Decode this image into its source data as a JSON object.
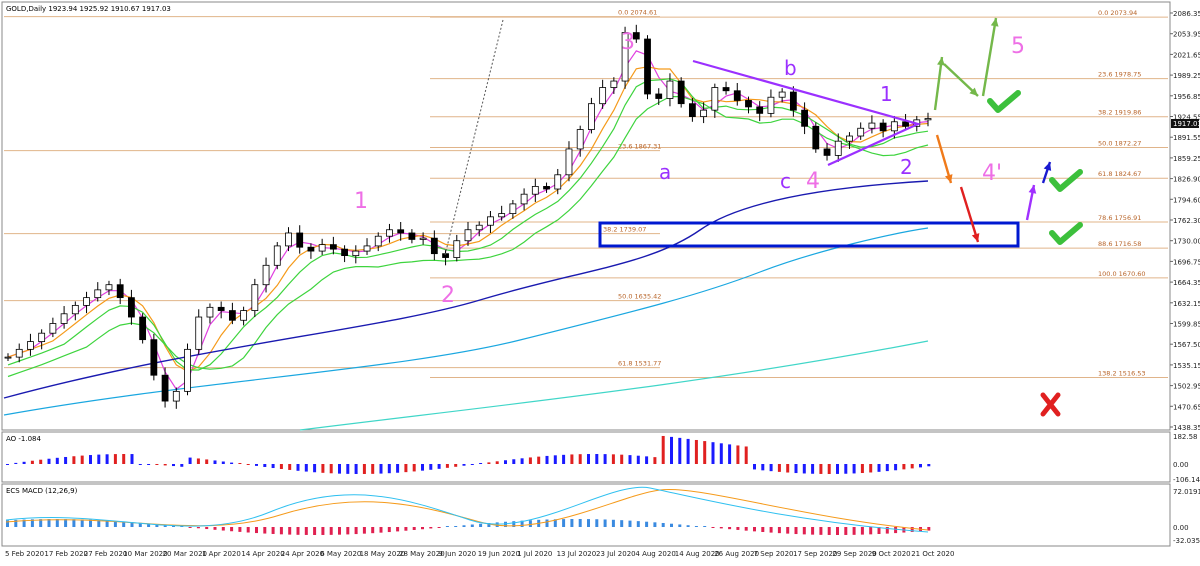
{
  "header": {
    "main_title": "GOLD,Daily 1923.94 1925.92 1910.67 1917.03",
    "ao_title": "AO -1.084",
    "macd_title": "ECS MACD (12,26,9)"
  },
  "current_price": "1917.03",
  "colors": {
    "up": "#1a1aff",
    "down": "#e02020",
    "fib": "#e0b48a",
    "trend_purple": "#9b30ff",
    "box_blue": "#0018d0",
    "ma_navy": "#1a1ab0",
    "ma_sky": "#1aa7e0",
    "ma_aqua": "#40d6c8",
    "ma_green": "#3ed43e",
    "ma_orange": "#f59a1a",
    "ma_magenta": "#e040e0",
    "check_green": "#3cc03c",
    "cross_red": "#e02020"
  },
  "price_axis": {
    "ylim": [
      1438.35,
      2088.0
    ],
    "labels": [
      "2086.35",
      "2053.95",
      "2021.65",
      "1989.25",
      "1956.85",
      "1924.55",
      "1891.55",
      "1859.25",
      "1826.90",
      "1794.60",
      "1762.30",
      "1730.00",
      "1696.75",
      "1664.35",
      "1632.15",
      "1599.85",
      "1567.50",
      "1535.15",
      "1502.95",
      "1470.65",
      "1438.35"
    ]
  },
  "fib_levels": [
    {
      "label": "0.0 2073.94",
      "price": 2073.94
    },
    {
      "label": "23.6 1978.75",
      "price": 1978.75
    },
    {
      "label": "38.2 1919.86",
      "price": 1919.86
    },
    {
      "label": "50.0 1872.27",
      "price": 1872.27
    },
    {
      "label": "61.8 1824.67",
      "price": 1824.67
    },
    {
      "label": "78.6 1756.91",
      "price": 1756.91
    },
    {
      "label": "88.6 1716.58",
      "price": 1716.58
    },
    {
      "label": "100.0 1670.60",
      "price": 1670.6
    },
    {
      "label": "138.2 1516.53",
      "price": 1516.53
    }
  ],
  "fib_levels_left": [
    {
      "label": "0.0 2074.61",
      "price": 2074.61
    },
    {
      "label": "23.6 1867.31",
      "price": 1867.31
    },
    {
      "label": "38.2 1739.07",
      "price": 1739.07
    },
    {
      "label": "50.0 1635.42",
      "price": 1635.42
    },
    {
      "label": "61.8 1531.77",
      "price": 1531.77
    }
  ],
  "date_axis": [
    "5 Feb 2020",
    "17 Feb 2020",
    "27 Feb 2020",
    "10 Mar 2020",
    "20 Mar 2020",
    "1 Apr 2020",
    "14 Apr 2020",
    "24 Apr 2020",
    "6 May 2020",
    "18 May 2020",
    "28 May 2020",
    "9 Jun 2020",
    "19 Jun 2020",
    "1 Jul 2020",
    "13 Jul 2020",
    "23 Jul 2020",
    "4 Aug 2020",
    "14 Aug 2020",
    "26 Aug 2020",
    "7 Sep 2020",
    "17 Sep 2020",
    "29 Sep 2020",
    "9 Oct 2020",
    "21 Oct 2020"
  ],
  "ao_axis": {
    "labels": [
      "182.58",
      "0.00",
      "-106.141"
    ]
  },
  "macd_axis": {
    "labels": [
      "72.0191",
      "0.00",
      "-32.0352"
    ]
  },
  "wave_labels": {
    "pink_1": "1",
    "pink_2": "2",
    "pink_3": "3",
    "pink_4": "4",
    "pink_4p": "4'",
    "pink_5": "5",
    "purple_a": "a",
    "purple_b": "b",
    "purple_c": "c",
    "purple_1": "1",
    "purple_2": "2"
  },
  "chart_data": {
    "type": "candlestick",
    "title": "GOLD,Daily",
    "ohlc_last": {
      "open": 1923.94,
      "high": 1925.92,
      "low": 1910.67,
      "close": 1917.03
    },
    "close_path": [
      1548,
      1560,
      1572,
      1585,
      1600,
      1615,
      1628,
      1640,
      1652,
      1660,
      1640,
      1610,
      1575,
      1520,
      1480,
      1495,
      1560,
      1610,
      1625,
      1620,
      1605,
      1620,
      1660,
      1690,
      1720,
      1740,
      1718,
      1712,
      1722,
      1715,
      1705,
      1712,
      1720,
      1735,
      1745,
      1740,
      1730,
      1732,
      1708,
      1702,
      1728,
      1745,
      1752,
      1765,
      1770,
      1785,
      1800,
      1812,
      1808,
      1830,
      1870,
      1900,
      1940,
      1965,
      1975,
      2050,
      2040,
      1955,
      1948,
      1975,
      1940,
      1920,
      1930,
      1965,
      1960,
      1945,
      1935,
      1925,
      1950,
      1958,
      1930,
      1905,
      1870,
      1860,
      1882,
      1890,
      1902,
      1910,
      1898,
      1912,
      1905,
      1915,
      1917.03
    ]
  }
}
